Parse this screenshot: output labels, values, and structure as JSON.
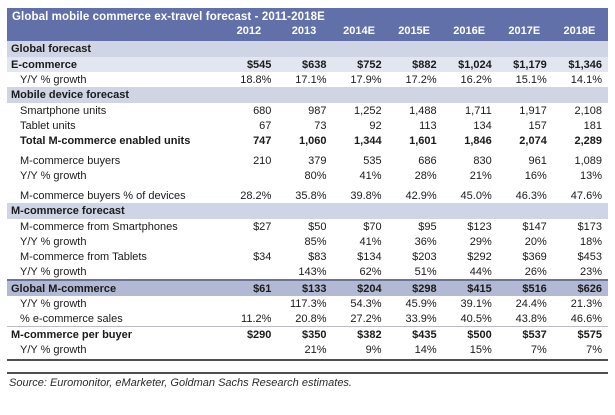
{
  "chart_data": {
    "type": "table",
    "title": "Global mobile commerce ex-travel forecast - 2011-2018E",
    "columns": [
      "2012",
      "2013",
      "2014E",
      "2015E",
      "2016E",
      "2017E",
      "2018E"
    ],
    "rows": [
      {
        "kind": "section",
        "label": "Global forecast"
      },
      {
        "kind": "data",
        "label": "E-commerce",
        "values": [
          "$545",
          "$638",
          "$752",
          "$882",
          "$1,024",
          "$1,179",
          "$1,346"
        ],
        "bold": true,
        "bg": "ecommerce",
        "indent": 0
      },
      {
        "kind": "data",
        "label": "Y/Y % growth",
        "values": [
          "18.8%",
          "17.1%",
          "17.9%",
          "17.2%",
          "16.2%",
          "15.1%",
          "14.1%"
        ],
        "indent": 1
      },
      {
        "kind": "section",
        "label": "Mobile device forecast"
      },
      {
        "kind": "data",
        "label": "Smartphone units",
        "values": [
          "680",
          "987",
          "1,252",
          "1,488",
          "1,711",
          "1,917",
          "2,108"
        ],
        "indent": 1
      },
      {
        "kind": "data",
        "label": "Tablet units",
        "values": [
          "67",
          "73",
          "92",
          "113",
          "134",
          "157",
          "181"
        ],
        "indent": 1
      },
      {
        "kind": "data",
        "label": "Total M-commerce enabled units",
        "values": [
          "747",
          "1,060",
          "1,344",
          "1,601",
          "1,846",
          "2,074",
          "2,289"
        ],
        "bold": true,
        "indent": 1
      },
      {
        "kind": "spacer"
      },
      {
        "kind": "data",
        "label": "M-commerce buyers",
        "values": [
          "210",
          "379",
          "535",
          "686",
          "830",
          "961",
          "1,089"
        ],
        "indent": 1
      },
      {
        "kind": "data",
        "label": "Y/Y % growth",
        "values": [
          "",
          "80%",
          "41%",
          "28%",
          "21%",
          "16%",
          "13%"
        ],
        "indent": 1
      },
      {
        "kind": "spacer"
      },
      {
        "kind": "data",
        "label": "M-commerce buyers % of devices",
        "values": [
          "28.2%",
          "35.8%",
          "39.8%",
          "42.9%",
          "45.0%",
          "46.3%",
          "47.6%"
        ],
        "indent": 1
      },
      {
        "kind": "section",
        "label": "M-commerce forecast"
      },
      {
        "kind": "data",
        "label": "M-commerce from Smartphones",
        "values": [
          "$27",
          "$50",
          "$70",
          "$95",
          "$123",
          "$147",
          "$173"
        ],
        "indent": 1
      },
      {
        "kind": "data",
        "label": "Y/Y % growth",
        "values": [
          "",
          "85%",
          "41%",
          "36%",
          "29%",
          "20%",
          "18%"
        ],
        "indent": 1
      },
      {
        "kind": "data",
        "label": "M-commerce from Tablets",
        "values": [
          "$34",
          "$83",
          "$134",
          "$203",
          "$292",
          "$369",
          "$453"
        ],
        "indent": 1
      },
      {
        "kind": "data",
        "label": "Y/Y % growth",
        "values": [
          "",
          "143%",
          "62%",
          "51%",
          "44%",
          "26%",
          "23%"
        ],
        "indent": 1
      },
      {
        "kind": "data",
        "label": "Global M-commerce",
        "values": [
          "$61",
          "$133",
          "$204",
          "$298",
          "$415",
          "$516",
          "$626"
        ],
        "bold": true,
        "bg": "highlight",
        "border_top": "dark",
        "indent": 0
      },
      {
        "kind": "data",
        "label": "Y/Y % growth",
        "values": [
          "",
          "117.3%",
          "54.3%",
          "45.9%",
          "39.1%",
          "24.4%",
          "21.3%"
        ],
        "indent": 1
      },
      {
        "kind": "data",
        "label": "% e-commerce sales",
        "values": [
          "11.2%",
          "20.8%",
          "27.2%",
          "33.9%",
          "40.5%",
          "43.8%",
          "46.6%"
        ],
        "indent": 1
      },
      {
        "kind": "data",
        "label": "M-commerce per buyer",
        "values": [
          "$290",
          "$350",
          "$382",
          "$435",
          "$500",
          "$537",
          "$575"
        ],
        "bold": true,
        "border_top": "light",
        "indent": 0
      },
      {
        "kind": "data",
        "label": "Y/Y % growth",
        "values": [
          "",
          "21%",
          "9%",
          "14%",
          "15%",
          "7%",
          "7%"
        ],
        "indent": 1
      }
    ],
    "source_note": "Source: Euromonitor, eMarketer, Goldman Sachs Research estimates.",
    "layout": {
      "legend": "none",
      "grid": "off",
      "value_alignment": "right"
    }
  },
  "colors": {
    "header_bg": "#6170a8",
    "header_text": "#ffffff",
    "section_bg": "#cfd5e5",
    "ecommerce_bg": "#e2e6f1",
    "highlight_bg": "#b1b9d4",
    "text": "#1b1b1b",
    "rule": "#4f4f4f"
  }
}
